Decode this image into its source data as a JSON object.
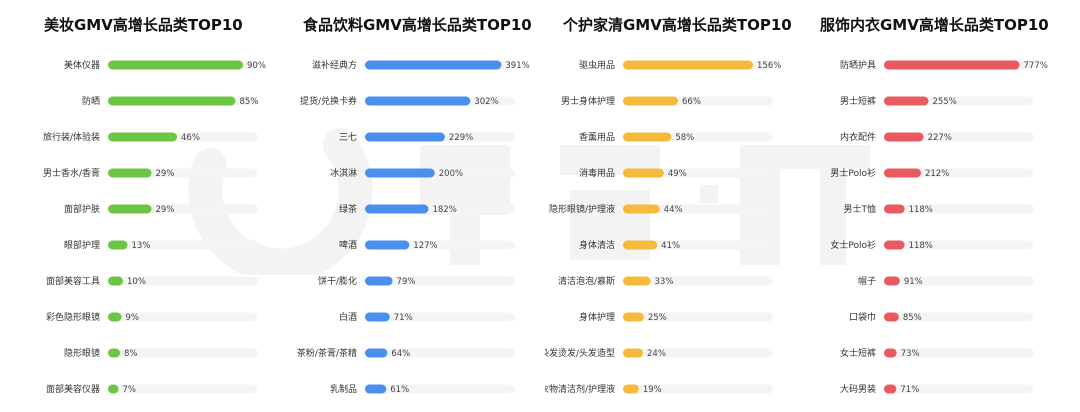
{
  "chart_data": [
    {
      "type": "bar",
      "orientation": "horizontal",
      "title": "美妆GMV高增长品类TOP10",
      "color": "#6cc644",
      "categories": [
        "美体仪器",
        "防晒",
        "旅行装/体验装",
        "男士香水/香膏",
        "面部护肤",
        "眼部护理",
        "面部美容工具",
        "彩色隐形眼镜",
        "隐形眼镜",
        "面部美容仪器"
      ],
      "values": [
        90,
        85,
        46,
        29,
        29,
        13,
        10,
        9,
        8,
        7
      ],
      "value_labels": [
        "90%",
        "85%",
        "46%",
        "29%",
        "29%",
        "13%",
        "10%",
        "9%",
        "8%",
        "7%"
      ],
      "xlim": [
        0,
        100
      ]
    },
    {
      "type": "bar",
      "orientation": "horizontal",
      "title": "食品饮料GMV高增长品类TOP10",
      "color": "#4a8ff0",
      "categories": [
        "滋补经典方",
        "提货/兑换卡券",
        "三七",
        "冰淇淋",
        "绿茶",
        "啤酒",
        "饼干/膨化",
        "白酒",
        "茶粉/茶膏/茶精",
        "乳制品"
      ],
      "values": [
        391,
        302,
        229,
        200,
        182,
        127,
        79,
        71,
        64,
        61
      ],
      "value_labels": [
        "391%",
        "302%",
        "229%",
        "200%",
        "182%",
        "127%",
        "79%",
        "71%",
        "64%",
        "61%"
      ],
      "xlim": [
        0,
        430
      ]
    },
    {
      "type": "bar",
      "orientation": "horizontal",
      "title": "个护家清GMV高增长品类TOP10",
      "color": "#f5b93c",
      "categories": [
        "驱虫用品",
        "男士身体护理",
        "香薰用品",
        "消毒用品",
        "隐形眼镜/护理液",
        "身体清洁",
        "清洁泡泡/慕斯",
        "身体护理",
        "染发烫发/头发造型",
        "衣物清洁剂/护理液"
      ],
      "values": [
        156,
        66,
        58,
        49,
        44,
        41,
        33,
        25,
        24,
        19
      ],
      "value_labels": [
        "156%",
        "66%",
        "58%",
        "49%",
        "44%",
        "41%",
        "33%",
        "25%",
        "24%",
        "19%"
      ],
      "xlim": [
        0,
        180
      ]
    },
    {
      "type": "bar",
      "orientation": "horizontal",
      "title": "服饰内衣GMV高增长品类TOP10",
      "color": "#e85a5f",
      "categories": [
        "防晒护具",
        "男士短裤",
        "内衣配件",
        "男士Polo衫",
        "男士T恤",
        "女士Polo衫",
        "帽子",
        "口袋巾",
        "女士短裤",
        "大码男装"
      ],
      "values": [
        777,
        255,
        227,
        212,
        118,
        118,
        91,
        85,
        73,
        71
      ],
      "value_labels": [
        "777%",
        "255%",
        "227%",
        "212%",
        "118%",
        "118%",
        "91%",
        "85%",
        "73%",
        "71%"
      ],
      "xlim": [
        0,
        860
      ]
    }
  ]
}
